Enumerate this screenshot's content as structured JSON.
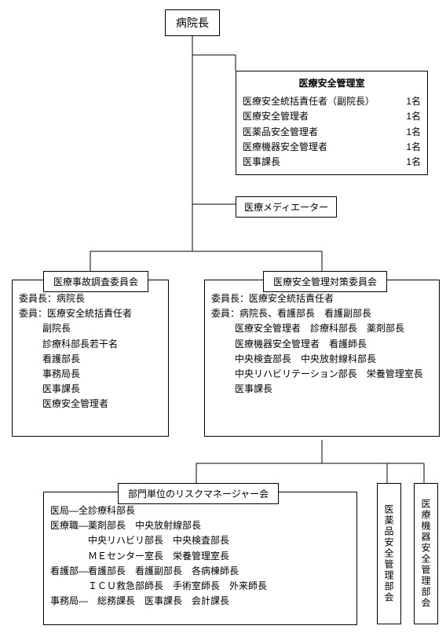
{
  "director": {
    "label": "病院長"
  },
  "safety_office": {
    "title": "医療安全管理室",
    "rows": [
      {
        "label": "医療安全統括責任者（副院長）",
        "count": "1名"
      },
      {
        "label": "医療安全管理者",
        "count": "1名"
      },
      {
        "label": "医薬品安全管理者",
        "count": "1名"
      },
      {
        "label": "医療機器安全管理者",
        "count": "1名"
      },
      {
        "label": "医事課長",
        "count": "1名"
      }
    ]
  },
  "mediator": {
    "label": "医療メディエーター"
  },
  "accident_committee": {
    "title": "医療事故調査委員会",
    "chair": "委員長：病院長",
    "members_label": "委員：医療安全統括責任者",
    "members": [
      "副院長",
      "診療科部長若干名",
      "看護部長",
      "事務局長",
      "医事課長",
      "医療安全管理者"
    ]
  },
  "safety_committee": {
    "title": "医療安全管理対策委員会",
    "chair": "委員長：医療安全統括責任者",
    "members_label": "委員：病院長、看護部長　看護副部長",
    "members": [
      "医療安全管理者　診療科部長　薬剤部長",
      "医療機器安全管理者　看護師長",
      "中央検査部長　中央放射線科部長",
      "中央リハビリテーション部長　栄養管理室長",
      "医事課長"
    ]
  },
  "risk_manager": {
    "title": "部門単位のリスクマネージャー会",
    "lines": [
      "医局―全診療科部長",
      "医療職―薬剤部長　中央放射線部長",
      "　　　　中央リハビリ部長　中央検査部長",
      "　　　　ＭＥセンター室長　栄養管理室長",
      "看護部―看護部長　看護副部長　各病棟師長",
      "　　　　ＩＣＵ救急部師長　手術室師長　外来師長",
      "事務局―　総務課長　医事課長　会計課長"
    ]
  },
  "drug_dept": {
    "label": "医薬品安全管理部会"
  },
  "device_dept": {
    "label": "医療機器安全管理部会"
  }
}
